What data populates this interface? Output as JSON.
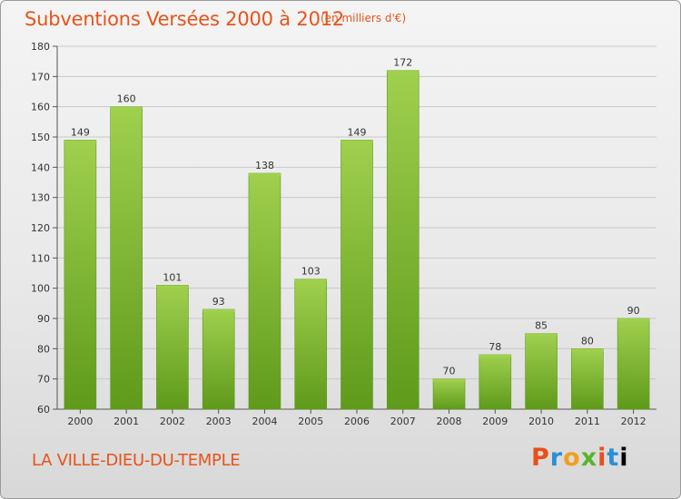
{
  "title": "Subventions Versées 2000 à 2012",
  "subtitle": "(en milliers d'€)",
  "commune": "LA VILLE-DIEU-DU-TEMPLE",
  "logo": [
    "P",
    "r",
    "o",
    "x",
    "i",
    "t",
    "i"
  ],
  "chart_data": {
    "type": "bar",
    "title": "Subventions Versées 2000 à 2012",
    "subtitle": "(en milliers d'€)",
    "categories": [
      "2000",
      "2001",
      "2002",
      "2003",
      "2004",
      "2005",
      "2006",
      "2007",
      "2008",
      "2009",
      "2010",
      "2011",
      "2012"
    ],
    "values": [
      149,
      160,
      101,
      93,
      138,
      103,
      149,
      172,
      70,
      78,
      85,
      80,
      90
    ],
    "ylim": [
      60,
      180
    ],
    "yticks": [
      60,
      70,
      80,
      90,
      100,
      110,
      120,
      130,
      140,
      150,
      160,
      170,
      180
    ],
    "grid": true,
    "bar_color": "#7fba34",
    "bar_color_light": "#9fd04e",
    "bar_color_dark": "#5f9a1a"
  }
}
